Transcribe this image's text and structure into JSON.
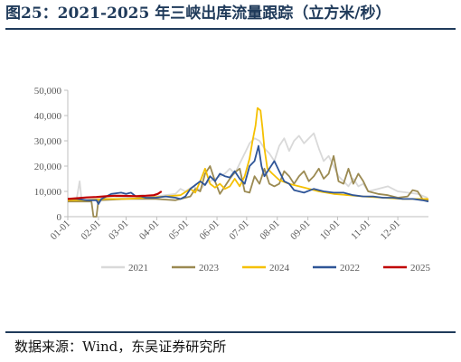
{
  "title": "图25：2021-2025 年三峡出库流量跟踪（立方米/秒）",
  "source": "数据来源：Wind，东吴证券研究所",
  "chart_data": {
    "type": "line",
    "title": "",
    "xlabel": "",
    "ylabel": "",
    "ylim": [
      0,
      50000
    ],
    "y_ticks": [
      0,
      10000,
      20000,
      30000,
      40000,
      50000
    ],
    "y_tick_labels": [
      "0",
      "10,000",
      "20,000",
      "30,000",
      "40,000",
      "50,000"
    ],
    "x_tick_labels": [
      "01-01",
      "02-01",
      "03-01",
      "04-01",
      "05-01",
      "06-01",
      "07-01",
      "08-01",
      "09-01",
      "10-01",
      "11-01",
      "12-01"
    ],
    "xlim_days": [
      1,
      366
    ],
    "grid": false,
    "legend_position": "bottom",
    "series": [
      {
        "name": "2021",
        "color": "#d9d9d9",
        "points": [
          [
            1,
            6500
          ],
          [
            10,
            7000
          ],
          [
            13,
            14000
          ],
          [
            15,
            6500
          ],
          [
            30,
            7000
          ],
          [
            45,
            8000
          ],
          [
            60,
            7500
          ],
          [
            75,
            8500
          ],
          [
            90,
            8000
          ],
          [
            100,
            8500
          ],
          [
            110,
            9000
          ],
          [
            115,
            11000
          ],
          [
            120,
            10000
          ],
          [
            128,
            12000
          ],
          [
            135,
            10500
          ],
          [
            140,
            13000
          ],
          [
            150,
            15000
          ],
          [
            160,
            17000
          ],
          [
            165,
            19000
          ],
          [
            170,
            17000
          ],
          [
            175,
            21000
          ],
          [
            180,
            25000
          ],
          [
            185,
            29000
          ],
          [
            190,
            31000
          ],
          [
            195,
            30000
          ],
          [
            200,
            27000
          ],
          [
            205,
            25000
          ],
          [
            210,
            22000
          ],
          [
            215,
            28000
          ],
          [
            220,
            31000
          ],
          [
            225,
            26000
          ],
          [
            230,
            30000
          ],
          [
            235,
            32000
          ],
          [
            240,
            29000
          ],
          [
            245,
            31000
          ],
          [
            250,
            33000
          ],
          [
            255,
            27000
          ],
          [
            260,
            22000
          ],
          [
            265,
            24000
          ],
          [
            270,
            20000
          ],
          [
            275,
            16000
          ],
          [
            280,
            14000
          ],
          [
            285,
            12000
          ],
          [
            290,
            15000
          ],
          [
            295,
            12000
          ],
          [
            300,
            13000
          ],
          [
            305,
            10000
          ],
          [
            315,
            11000
          ],
          [
            325,
            12000
          ],
          [
            335,
            10000
          ],
          [
            345,
            9500
          ],
          [
            355,
            9000
          ],
          [
            365,
            7500
          ]
        ]
      },
      {
        "name": "2023",
        "color": "#9b8a52",
        "points": [
          [
            1,
            6000
          ],
          [
            25,
            6000
          ],
          [
            27,
            0
          ],
          [
            30,
            0
          ],
          [
            32,
            6500
          ],
          [
            60,
            7000
          ],
          [
            90,
            7000
          ],
          [
            110,
            6500
          ],
          [
            125,
            8000
          ],
          [
            130,
            11000
          ],
          [
            135,
            10000
          ],
          [
            140,
            17000
          ],
          [
            145,
            20000
          ],
          [
            150,
            14000
          ],
          [
            155,
            9000
          ],
          [
            160,
            12000
          ],
          [
            165,
            15000
          ],
          [
            170,
            17500
          ],
          [
            175,
            19000
          ],
          [
            180,
            10000
          ],
          [
            185,
            9500
          ],
          [
            190,
            16000
          ],
          [
            195,
            13000
          ],
          [
            200,
            19000
          ],
          [
            205,
            13000
          ],
          [
            210,
            12000
          ],
          [
            215,
            13000
          ],
          [
            220,
            18000
          ],
          [
            225,
            16000
          ],
          [
            230,
            13000
          ],
          [
            235,
            16000
          ],
          [
            240,
            18000
          ],
          [
            245,
            14000
          ],
          [
            250,
            16000
          ],
          [
            255,
            19000
          ],
          [
            260,
            15000
          ],
          [
            265,
            17000
          ],
          [
            270,
            24000
          ],
          [
            275,
            14000
          ],
          [
            280,
            13000
          ],
          [
            285,
            19000
          ],
          [
            290,
            13000
          ],
          [
            295,
            17000
          ],
          [
            300,
            14000
          ],
          [
            305,
            10000
          ],
          [
            315,
            9000
          ],
          [
            325,
            8500
          ],
          [
            335,
            7500
          ],
          [
            345,
            8000
          ],
          [
            350,
            10500
          ],
          [
            355,
            10000
          ],
          [
            360,
            7000
          ],
          [
            366,
            6500
          ]
        ]
      },
      {
        "name": "2024",
        "color": "#f5c000",
        "points": [
          [
            1,
            6500
          ],
          [
            20,
            6500
          ],
          [
            40,
            7000
          ],
          [
            60,
            7000
          ],
          [
            80,
            7500
          ],
          [
            100,
            8000
          ],
          [
            115,
            8500
          ],
          [
            125,
            11000
          ],
          [
            130,
            9500
          ],
          [
            135,
            14000
          ],
          [
            140,
            19000
          ],
          [
            145,
            13000
          ],
          [
            150,
            11500
          ],
          [
            155,
            13000
          ],
          [
            160,
            11000
          ],
          [
            165,
            12000
          ],
          [
            170,
            15000
          ],
          [
            175,
            12000
          ],
          [
            180,
            16000
          ],
          [
            185,
            23000
          ],
          [
            188,
            30000
          ],
          [
            191,
            36000
          ],
          [
            193,
            43000
          ],
          [
            196,
            42000
          ],
          [
            198,
            35000
          ],
          [
            200,
            27000
          ],
          [
            203,
            19000
          ],
          [
            208,
            17000
          ],
          [
            215,
            14500
          ],
          [
            225,
            13000
          ],
          [
            240,
            11500
          ],
          [
            255,
            10000
          ],
          [
            270,
            9000
          ],
          [
            285,
            8500
          ],
          [
            300,
            8000
          ],
          [
            320,
            7500
          ],
          [
            340,
            7000
          ],
          [
            366,
            7000
          ]
        ]
      },
      {
        "name": "2022",
        "color": "#2f5597",
        "points": [
          [
            1,
            7000
          ],
          [
            10,
            7000
          ],
          [
            20,
            6500
          ],
          [
            30,
            6500
          ],
          [
            32,
            5000
          ],
          [
            35,
            7000
          ],
          [
            45,
            9000
          ],
          [
            55,
            9500
          ],
          [
            60,
            9000
          ],
          [
            65,
            9500
          ],
          [
            70,
            8000
          ],
          [
            75,
            8000
          ],
          [
            80,
            7500
          ],
          [
            90,
            7500
          ],
          [
            100,
            8000
          ],
          [
            110,
            7500
          ],
          [
            115,
            7000
          ],
          [
            120,
            8000
          ],
          [
            125,
            11000
          ],
          [
            130,
            12500
          ],
          [
            135,
            14000
          ],
          [
            140,
            12500
          ],
          [
            145,
            16000
          ],
          [
            150,
            14000
          ],
          [
            155,
            17000
          ],
          [
            160,
            16000
          ],
          [
            165,
            15500
          ],
          [
            170,
            18000
          ],
          [
            175,
            15000
          ],
          [
            180,
            13000
          ],
          [
            185,
            20000
          ],
          [
            190,
            22000
          ],
          [
            194,
            28000
          ],
          [
            197,
            20000
          ],
          [
            200,
            16000
          ],
          [
            205,
            19000
          ],
          [
            210,
            22000
          ],
          [
            215,
            18000
          ],
          [
            220,
            14000
          ],
          [
            225,
            13000
          ],
          [
            230,
            10500
          ],
          [
            240,
            9500
          ],
          [
            250,
            11000
          ],
          [
            260,
            10000
          ],
          [
            270,
            9500
          ],
          [
            280,
            9500
          ],
          [
            290,
            8500
          ],
          [
            300,
            8000
          ],
          [
            310,
            8000
          ],
          [
            320,
            7500
          ],
          [
            330,
            7500
          ],
          [
            340,
            7000
          ],
          [
            350,
            7000
          ],
          [
            360,
            6500
          ],
          [
            366,
            6000
          ]
        ]
      },
      {
        "name": "2025",
        "color": "#c00000",
        "points": [
          [
            1,
            7000
          ],
          [
            10,
            7300
          ],
          [
            20,
            7600
          ],
          [
            30,
            7800
          ],
          [
            40,
            8100
          ],
          [
            50,
            8300
          ],
          [
            60,
            8200
          ],
          [
            70,
            8100
          ],
          [
            80,
            8300
          ],
          [
            88,
            8500
          ],
          [
            92,
            9000
          ],
          [
            96,
            10000
          ]
        ]
      }
    ]
  }
}
